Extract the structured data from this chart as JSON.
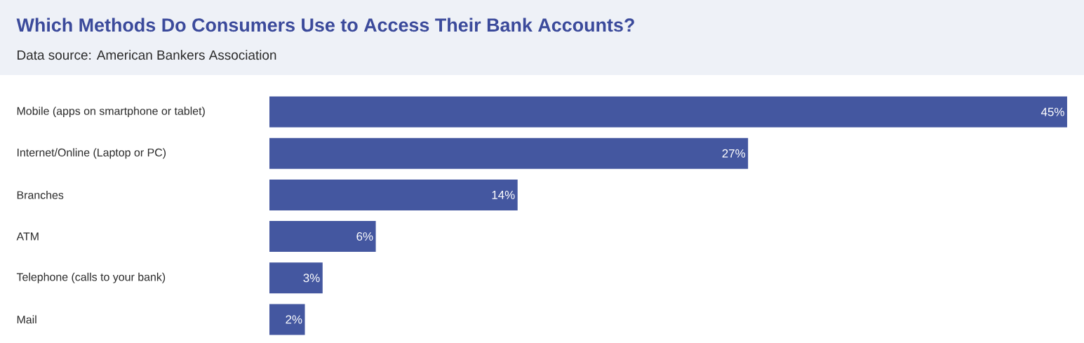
{
  "chart_data": {
    "type": "bar",
    "orientation": "horizontal",
    "title": "Which Methods Do Consumers Use to Access Their Bank Accounts?",
    "subtitle": "Data source: American Bankers Association",
    "categories": [
      "Mobile (apps on smartphone or tablet)",
      "Internet/Online (Laptop or PC)",
      "Branches",
      "ATM",
      "Telephone (calls to your bank)",
      "Mail"
    ],
    "values": [
      45,
      27,
      14,
      6,
      3,
      2
    ],
    "value_labels": [
      "45%",
      "27%",
      "14%",
      "6%",
      "3%",
      "2%"
    ],
    "color": "#4457a0"
  }
}
